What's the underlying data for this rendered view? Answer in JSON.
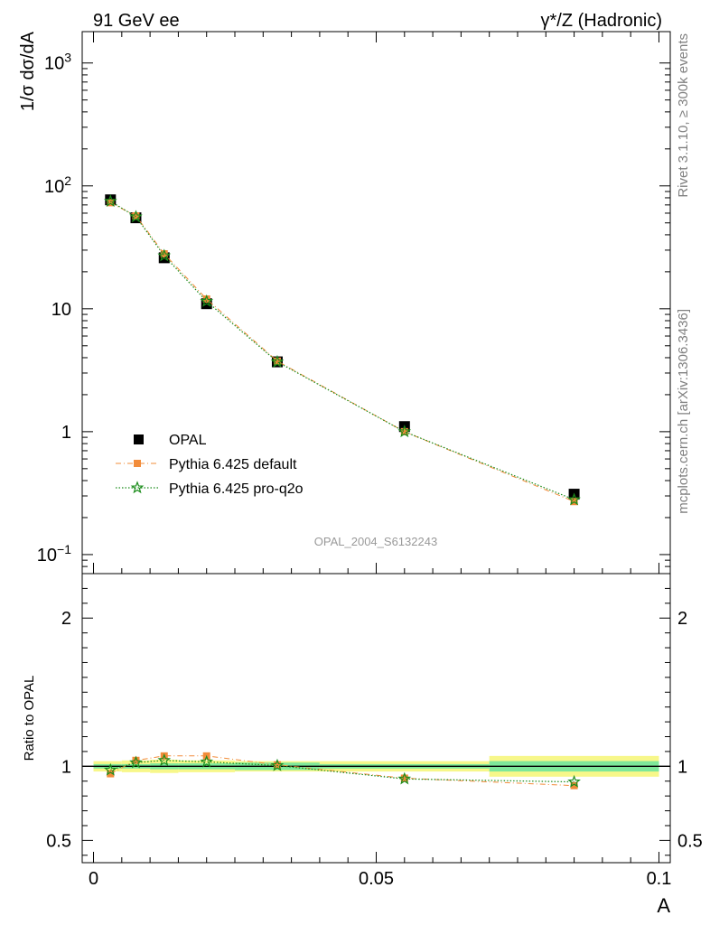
{
  "header": {
    "left_title": "91 GeV ee",
    "right_title": "γ*/Z (Hadronic)"
  },
  "side_labels": {
    "rivet": "Rivet 3.1.10, ≥ 300k events",
    "mcplots": "mcplots.cern.ch [arXiv:1306.3436]"
  },
  "watermark": "OPAL_2004_S6132243",
  "colors": {
    "data": "#000000",
    "pythia_default": "#f28c3a",
    "pythia_proq2o": "#1a8c1a",
    "band_inner": "#7ee89a",
    "band_outer": "#f7f78a"
  },
  "chart_data": [
    {
      "type": "line",
      "name": "main",
      "ylabel": "1/σ dσ/dA",
      "yscale": "log",
      "ylim": [
        0.07,
        1800
      ],
      "xlim": [
        -0.002,
        0.102
      ],
      "y_ticks": [
        {
          "value": 0.1,
          "base": "10",
          "exp": "−1"
        },
        {
          "value": 1,
          "base": "1",
          "exp": ""
        },
        {
          "value": 10,
          "base": "10",
          "exp": ""
        },
        {
          "value": 100,
          "base": "10",
          "exp": "2"
        },
        {
          "value": 1000,
          "base": "10",
          "exp": "3"
        }
      ],
      "legend": [
        {
          "label": "OPAL",
          "series": "data"
        },
        {
          "label": "Pythia 6.425 default",
          "series": "pythia_default"
        },
        {
          "label": "Pythia 6.425 pro-q2o",
          "series": "pythia_proq2o"
        }
      ],
      "x": [
        0.003,
        0.0075,
        0.0125,
        0.02,
        0.0325,
        0.055,
        0.085
      ],
      "series": [
        {
          "key": "data",
          "name": "OPAL",
          "values": [
            77,
            55,
            26,
            11,
            3.7,
            1.1,
            0.31
          ]
        },
        {
          "key": "pythia_default",
          "name": "Pythia 6.425 default",
          "values": [
            73,
            57,
            28,
            12,
            3.75,
            1.0,
            0.27
          ]
        },
        {
          "key": "pythia_proq2o",
          "name": "Pythia 6.425 pro-q2o",
          "values": [
            75,
            56,
            27,
            11.5,
            3.7,
            1.0,
            0.28
          ]
        }
      ]
    },
    {
      "type": "line",
      "name": "ratio",
      "ylabel": "Ratio to OPAL",
      "xlabel": "A",
      "ylim": [
        0.35,
        2.3
      ],
      "xlim": [
        -0.002,
        0.102
      ],
      "y_ticks": [
        {
          "value": 0.5,
          "label": "0.5"
        },
        {
          "value": 1,
          "label": "1"
        },
        {
          "value": 2,
          "label": "2"
        }
      ],
      "x_ticks": [
        {
          "value": 0,
          "label": "0"
        },
        {
          "value": 0.05,
          "label": "0.05"
        },
        {
          "value": 0.1,
          "label": "0.1"
        }
      ],
      "x": [
        0.003,
        0.0075,
        0.0125,
        0.02,
        0.0325,
        0.055,
        0.085
      ],
      "bins": [
        0,
        0.005,
        0.01,
        0.015,
        0.025,
        0.04,
        0.07,
        0.1
      ],
      "band_inner": [
        [
          0.985,
          1.015
        ],
        [
          0.985,
          1.015
        ],
        [
          0.98,
          1.02
        ],
        [
          0.98,
          1.02
        ],
        [
          0.975,
          1.025
        ],
        [
          0.985,
          1.015
        ],
        [
          0.965,
          1.035
        ]
      ],
      "band_outer": [
        [
          0.965,
          1.035
        ],
        [
          0.96,
          1.04
        ],
        [
          0.955,
          1.045
        ],
        [
          0.96,
          1.04
        ],
        [
          0.965,
          1.035
        ],
        [
          0.965,
          1.035
        ],
        [
          0.93,
          1.07
        ]
      ],
      "series": [
        {
          "key": "pythia_default",
          "name": "Pythia 6.425 default",
          "values": [
            0.95,
            1.04,
            1.07,
            1.07,
            1.01,
            0.92,
            0.87
          ]
        },
        {
          "key": "pythia_proq2o",
          "name": "Pythia 6.425 pro-q2o",
          "values": [
            0.975,
            1.025,
            1.04,
            1.03,
            1.005,
            0.915,
            0.895
          ]
        }
      ]
    }
  ]
}
